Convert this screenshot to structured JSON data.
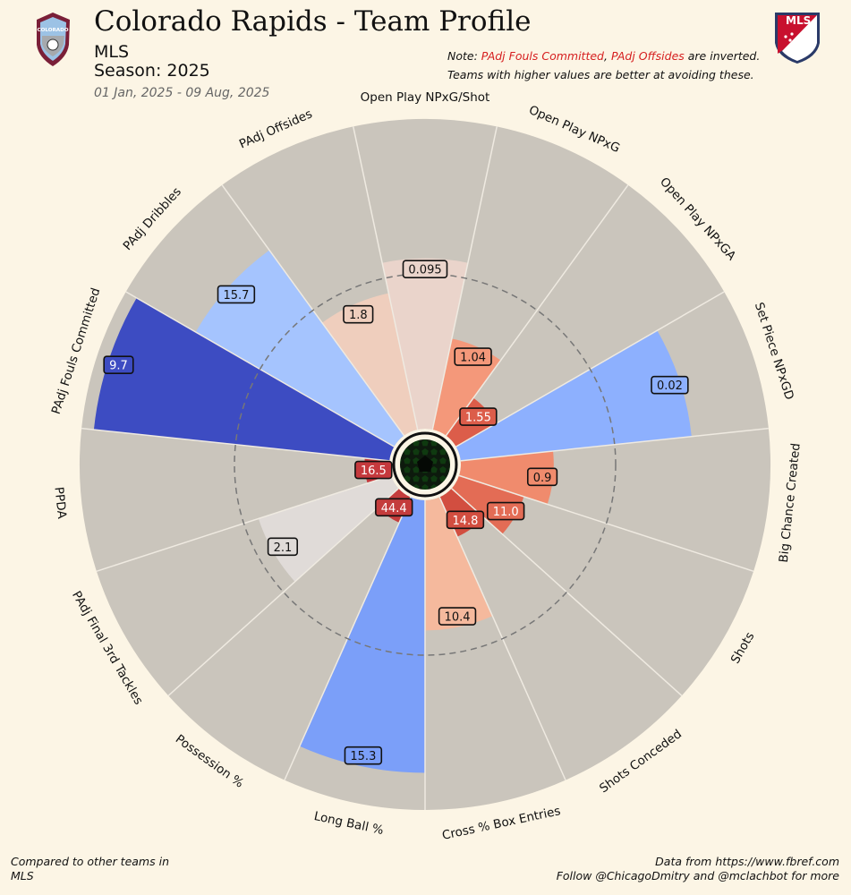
{
  "header": {
    "title": "Colorado Rapids - Team Profile",
    "league": "MLS",
    "season": "Season: 2025",
    "date_range": "01 Jan, 2025 - 09 Aug, 2025",
    "team_logo_text": "COLORADO",
    "league_logo_text": "MLS"
  },
  "note": {
    "prefix": "Note: ",
    "metric1": "PAdj Fouls Committed",
    "comma": ", ",
    "metric2": "PAdj Offsides",
    "suffix": " are inverted.",
    "line2": "Teams with higher values are better at avoiding these."
  },
  "footer": {
    "left_line1": "Compared to other teams in",
    "left_line2": "MLS",
    "right_line1": "Data from https://www.fbref.com",
    "right_line2": "Follow @ChicagoDmitry and @mclachbot for more"
  },
  "colors": {
    "background": "#fcf5e5",
    "slice_background": "#cac5bc",
    "accent_red": "#d62020"
  },
  "chart_data": {
    "type": "polar-bar",
    "title": "Colorado Rapids - Team Profile",
    "scale": "percentile",
    "rlim": [
      0,
      100
    ],
    "reference_ring": 50,
    "slices": [
      {
        "label": "Open Play NPxG/Shot",
        "value_label": "0.095",
        "percentile": 55,
        "color": "#ead4cb"
      },
      {
        "label": "Open Play NPxG",
        "value_label": "1.04",
        "percentile": 30,
        "color": "#f4987a"
      },
      {
        "label": "Open Play NPxGA",
        "value_label": "1.55",
        "percentile": 15,
        "color": "#dc5d4a"
      },
      {
        "label": "Set Piece NPxGD",
        "value_label": "0.02",
        "percentile": 75,
        "color": "#8db0fe"
      },
      {
        "label": "Big Chance Created",
        "value_label": "0.9",
        "percentile": 30,
        "color": "#f08b6d"
      },
      {
        "label": "Shots",
        "value_label": "11.0",
        "percentile": 22,
        "color": "#e36c55"
      },
      {
        "label": "Shots Conceded",
        "value_label": "14.8",
        "percentile": 14,
        "color": "#d24e40"
      },
      {
        "label": "Cross % Box Entries",
        "value_label": "10.4",
        "percentile": 42,
        "color": "#f5b99d"
      },
      {
        "label": "Long Ball %",
        "value_label": "15.3",
        "percentile": 88,
        "color": "#7b9ff9"
      },
      {
        "label": "Possession %",
        "value_label": "44.4",
        "percentile": 9,
        "color": "#c43c3c"
      },
      {
        "label": "PAdj Final 3rd Tackles",
        "value_label": "2.1",
        "percentile": 45,
        "color": "#e0dbd8"
      },
      {
        "label": "PPDA",
        "value_label": "16.5",
        "percentile": 8,
        "color": "#c5393d"
      },
      {
        "label": "PAdj Fouls Committed",
        "value_label": "9.7",
        "percentile": 96,
        "color": "#3d4cc2"
      },
      {
        "label": "PAdj Dribbles",
        "value_label": "15.7",
        "percentile": 74,
        "color": "#a5c4fe"
      },
      {
        "label": "PAdj Offsides",
        "value_label": "1.8",
        "percentile": 45,
        "color": "#efcebd"
      }
    ]
  }
}
